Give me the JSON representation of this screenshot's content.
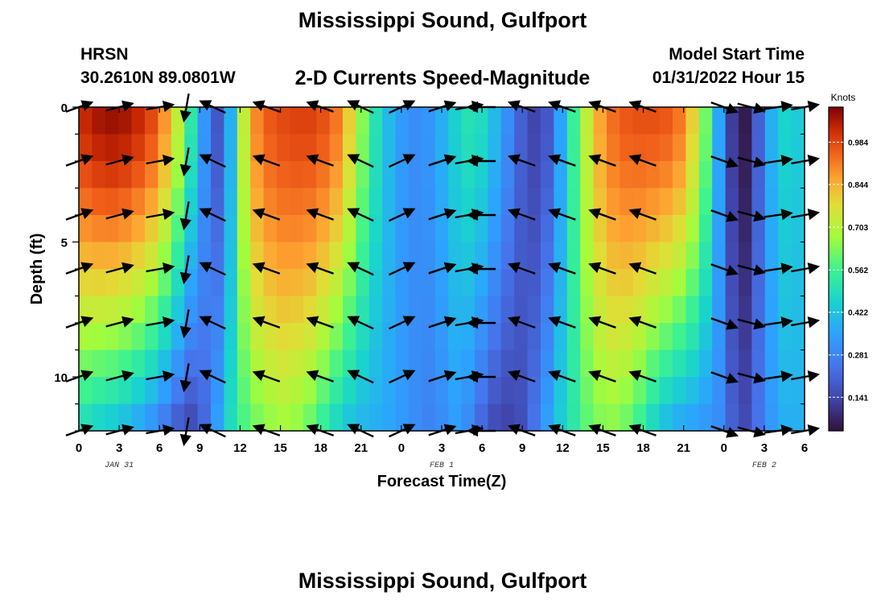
{
  "header": {
    "title": "Mississippi Sound, Gulfport",
    "station_name": "HRSN",
    "station_coords": "30.2610N  89.0801W",
    "subtitle": "2-D Currents Speed-Magnitude",
    "model_label": "Model Start Time",
    "model_time": "01/31/2022 Hour 15",
    "repeat_title": "Mississippi Sound, Gulfport"
  },
  "chart_data": {
    "type": "heatmap",
    "xlabel": "Forecast Time(Z)",
    "ylabel": "Depth (ft)",
    "x_tick_labels": [
      "0",
      "3",
      "6",
      "9",
      "12",
      "15",
      "18",
      "21",
      "0",
      "3",
      "6",
      "9",
      "12",
      "15",
      "18",
      "21",
      "0",
      "3",
      "6"
    ],
    "date_labels": [
      {
        "text": "JAN 31",
        "at_tick": 1
      },
      {
        "text": "FEB 1",
        "at_tick": 9
      },
      {
        "text": "FEB 2",
        "at_tick": 17
      }
    ],
    "y_ticks": [
      0,
      5,
      10
    ],
    "ylim": [
      0,
      12
    ],
    "colorbar": {
      "label": "Knots",
      "ticks": [
        0.984,
        0.844,
        0.703,
        0.562,
        0.422,
        0.281,
        0.141
      ],
      "range": [
        0.03,
        1.1
      ]
    },
    "hours": [
      0,
      1,
      2,
      3,
      4,
      5,
      6,
      7,
      8,
      9,
      10,
      11,
      12,
      13,
      14,
      15,
      16,
      17,
      18,
      19,
      20,
      21,
      22,
      23,
      24,
      25,
      26,
      27,
      28,
      29,
      30,
      31,
      32,
      33,
      34,
      35,
      36,
      37,
      38,
      39,
      40,
      41,
      42,
      43,
      44,
      45,
      46,
      47,
      48,
      49,
      50,
      51,
      52,
      53,
      54
    ],
    "surface_speed": [
      1.03,
      1.06,
      1.07,
      1.06,
      1.03,
      0.98,
      0.88,
      0.72,
      0.52,
      0.32,
      0.18,
      0.38,
      0.72,
      0.9,
      0.96,
      0.98,
      0.99,
      0.99,
      0.97,
      0.92,
      0.8,
      0.64,
      0.5,
      0.4,
      0.33,
      0.3,
      0.32,
      0.38,
      0.45,
      0.5,
      0.48,
      0.4,
      0.3,
      0.2,
      0.14,
      0.18,
      0.35,
      0.55,
      0.72,
      0.86,
      0.93,
      0.96,
      0.97,
      0.97,
      0.96,
      0.92,
      0.8,
      0.62,
      0.36,
      0.12,
      0.05,
      0.2,
      0.38,
      0.46,
      0.44
    ],
    "bottom_speed": [
      0.5,
      0.47,
      0.45,
      0.42,
      0.38,
      0.33,
      0.27,
      0.2,
      0.16,
      0.22,
      0.34,
      0.48,
      0.58,
      0.63,
      0.66,
      0.68,
      0.66,
      0.62,
      0.55,
      0.48,
      0.43,
      0.4,
      0.38,
      0.36,
      0.33,
      0.3,
      0.28,
      0.3,
      0.34,
      0.3,
      0.22,
      0.16,
      0.14,
      0.16,
      0.24,
      0.34,
      0.44,
      0.52,
      0.6,
      0.64,
      0.65,
      0.62,
      0.56,
      0.48,
      0.42,
      0.38,
      0.36,
      0.33,
      0.3,
      0.2,
      0.15,
      0.24,
      0.33,
      0.38,
      0.38
    ],
    "direction_points": [
      {
        "hour": 0,
        "angle": -20
      },
      {
        "hour": 3,
        "angle": -15
      },
      {
        "hour": 6,
        "angle": -10
      },
      {
        "hour": 8,
        "angle": 100
      },
      {
        "hour": 10,
        "angle": 205
      },
      {
        "hour": 14,
        "angle": 200
      },
      {
        "hour": 18,
        "angle": 200
      },
      {
        "hour": 21,
        "angle": 205
      },
      {
        "hour": 24,
        "angle": -25
      },
      {
        "hour": 27,
        "angle": -18
      },
      {
        "hour": 29,
        "angle": -10
      },
      {
        "hour": 30,
        "angle": 180
      },
      {
        "hour": 33,
        "angle": 200
      },
      {
        "hour": 36,
        "angle": 200
      },
      {
        "hour": 39,
        "angle": 200
      },
      {
        "hour": 42,
        "angle": 200
      },
      {
        "hour": 48,
        "angle": 20
      },
      {
        "hour": 50,
        "angle": 15
      },
      {
        "hour": 52,
        "angle": -8
      },
      {
        "hour": 54,
        "angle": -10
      }
    ]
  }
}
